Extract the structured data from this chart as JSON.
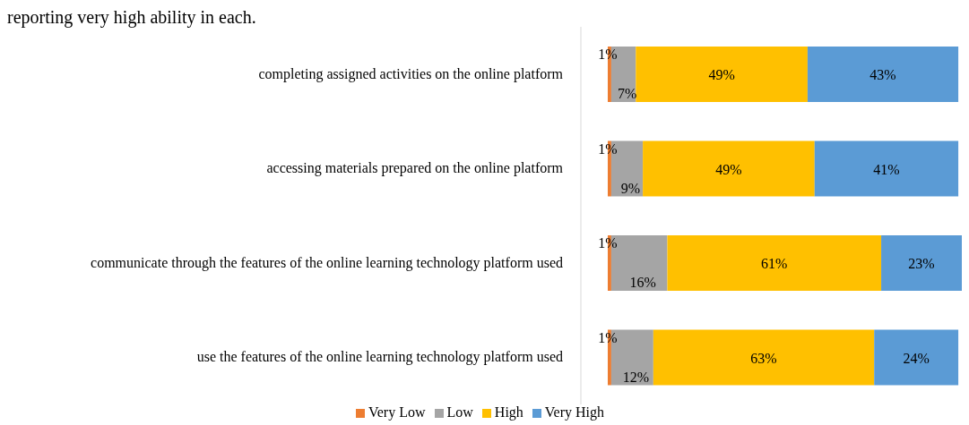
{
  "chart_data": {
    "type": "bar",
    "orientation": "horizontal",
    "stacked": true,
    "legend": "bottom",
    "tick_labels": false,
    "annotations": [
      "reporting very high ability in each."
    ],
    "categories": [
      "completing assigned activities on the online platform",
      "accessing materials prepared on the online platform",
      "communicate through the features of the online learning technology platform used",
      "use the features of the online learning technology platform used"
    ],
    "series": [
      {
        "name": "Very Low",
        "color": "#ed7d31",
        "values": [
          1,
          1,
          1,
          1
        ],
        "value_labels": [
          "1%",
          "1%",
          "1%",
          "1%"
        ]
      },
      {
        "name": "Low",
        "color": "#a5a5a5",
        "values": [
          7,
          9,
          16,
          12
        ],
        "value_labels": [
          "7%",
          "9%",
          "16%",
          "12%"
        ]
      },
      {
        "name": "High",
        "color": "#ffc000",
        "values": [
          49,
          49,
          61,
          63
        ],
        "value_labels": [
          "49%",
          "49%",
          "61%",
          "63%"
        ]
      },
      {
        "name": "Very High",
        "color": "#5b9bd5",
        "values": [
          43,
          41,
          23,
          24
        ],
        "value_labels": [
          "43%",
          "41%",
          "23%",
          "24%"
        ]
      }
    ]
  }
}
